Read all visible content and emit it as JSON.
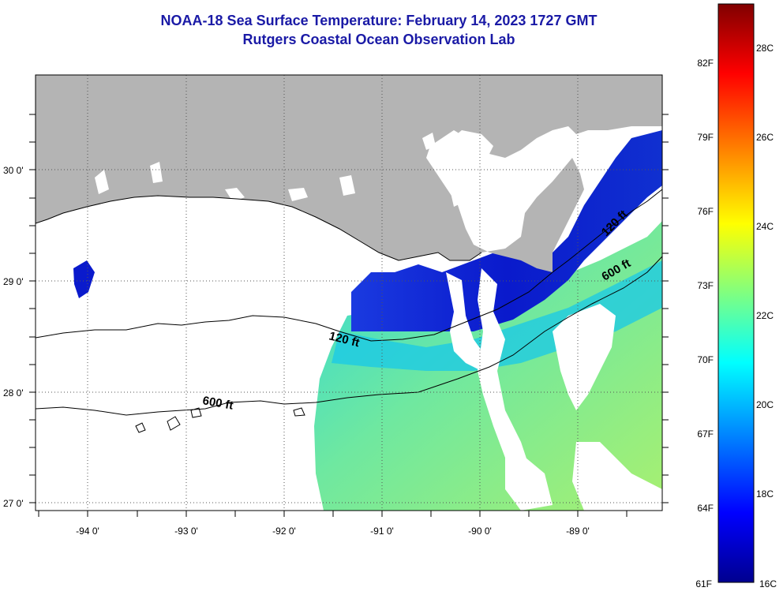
{
  "header": {
    "title": "NOAA-18 Sea Surface Temperature:  February 14, 2023 1727 GMT",
    "subtitle": "Rutgers Coastal Ocean Observation Lab"
  },
  "map": {
    "lon_ticks": [
      "-94 0'",
      "-93 0'",
      "-92 0'",
      "-91 0'",
      "-90 0'",
      "-89 0'"
    ],
    "lat_ticks": [
      "30 0'",
      "29 0'",
      "28 0'",
      "27 0'"
    ],
    "contours": {
      "isobath_120": "120 ft",
      "isobath_600": "600 ft"
    },
    "colors": {
      "land": "#b4b4b4",
      "ocean_no_data": "#ffffff",
      "cold_water": "#0a1acc",
      "warm_water": "#5fe8a0"
    }
  },
  "colorbar": {
    "f_labels": [
      "82F",
      "79F",
      "76F",
      "73F",
      "70F",
      "67F",
      "64F",
      "61F"
    ],
    "c_labels": [
      "28C",
      "26C",
      "24C",
      "22C",
      "20C",
      "18C",
      "16C"
    ],
    "gradient": [
      "#00008f",
      "#0000ff",
      "#0080ff",
      "#00ffff",
      "#80ff80",
      "#ffff00",
      "#ff8000",
      "#ff0000",
      "#800000"
    ]
  }
}
